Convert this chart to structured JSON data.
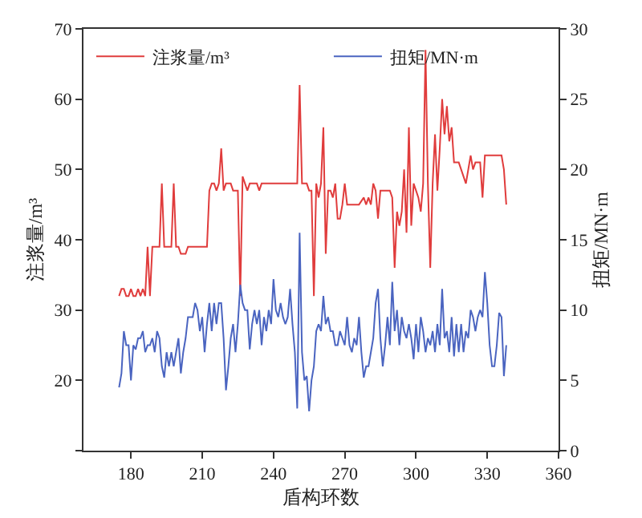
{
  "chart_data": {
    "type": "line",
    "xlabel": "盾构环数",
    "ylabel": "注浆量/m³",
    "y2label": "扭矩/MN·m",
    "xlim": [
      160,
      360
    ],
    "xticks": [
      180,
      210,
      240,
      270,
      300,
      330,
      360
    ],
    "ylim": [
      10,
      70
    ],
    "yticks": [
      {
        "value": 10,
        "label": null
      },
      20,
      30,
      40,
      50,
      60,
      70
    ],
    "y2lim": [
      0,
      30
    ],
    "y2ticks": [
      0,
      5,
      10,
      15,
      20,
      25,
      30
    ],
    "grid": false,
    "legend": "top",
    "marker": "none",
    "line_style": "solid",
    "series": [
      {
        "name": "注浆量/m³",
        "color": "#e03c3c",
        "x": [
          175,
          176,
          177,
          178,
          179,
          180,
          181,
          182,
          183,
          184,
          185,
          186,
          187,
          188,
          189,
          190,
          191,
          192,
          193,
          194,
          195,
          196,
          197,
          198,
          199,
          200,
          201,
          203,
          204,
          206,
          208,
          210,
          212,
          213,
          214,
          215,
          216,
          217,
          218,
          219,
          220,
          221,
          222,
          223,
          224,
          225,
          226,
          227,
          228,
          229,
          230,
          231,
          232,
          233,
          234,
          235,
          240,
          245,
          250,
          251,
          252,
          253,
          254,
          255,
          256,
          257,
          258,
          259,
          260,
          261,
          262,
          263,
          264,
          265,
          266,
          267,
          268,
          269,
          270,
          271,
          272,
          274,
          276,
          278,
          279,
          280,
          281,
          282,
          283,
          284,
          285,
          286,
          287,
          288,
          289,
          290,
          291,
          292,
          293,
          294,
          295,
          296,
          297,
          298,
          299,
          300,
          301,
          302,
          303,
          304,
          305,
          306,
          307,
          308,
          309,
          310,
          311,
          312,
          313,
          314,
          315,
          316,
          318,
          320,
          321,
          322,
          323,
          324,
          325,
          327,
          328,
          329,
          331,
          333,
          335,
          336,
          337,
          338
        ],
        "values": [
          32,
          33,
          33,
          32,
          32,
          33,
          32,
          32,
          33,
          32,
          33,
          32,
          39,
          32,
          39,
          39,
          39,
          39,
          48,
          39,
          39,
          39,
          39,
          48,
          39,
          39,
          38,
          38,
          39,
          39,
          39,
          39,
          39,
          47,
          48,
          48,
          47,
          48,
          53,
          47,
          48,
          48,
          48,
          47,
          47,
          47,
          32,
          49,
          48,
          47,
          48,
          48,
          48,
          48,
          47,
          48,
          48,
          48,
          48,
          62,
          48,
          48,
          48,
          47,
          47,
          32,
          48,
          46,
          48,
          56,
          38,
          47,
          47,
          46,
          48,
          43,
          43,
          45,
          48,
          45,
          45,
          45,
          45,
          46,
          45,
          46,
          45,
          48,
          47,
          43,
          47,
          47,
          47,
          47,
          47,
          46,
          36,
          44,
          42,
          44,
          50,
          41,
          56,
          42,
          48,
          47,
          46,
          44,
          48,
          67,
          48,
          36,
          48,
          55,
          47,
          53,
          60,
          55,
          59,
          54,
          56,
          51,
          51,
          49,
          48,
          50,
          52,
          50,
          51,
          51,
          46,
          52,
          52,
          52,
          52,
          52,
          50,
          45
        ]
      },
      {
        "name": "扭矩/MN·m",
        "color": "#4a64c0",
        "axis": "y2",
        "x": [
          175,
          176,
          177,
          178,
          179,
          180,
          181,
          182,
          183,
          184,
          185,
          186,
          187,
          188,
          189,
          190,
          191,
          192,
          193,
          194,
          195,
          196,
          197,
          198,
          199,
          200,
          201,
          202,
          203,
          204,
          206,
          207,
          208,
          209,
          210,
          211,
          212,
          213,
          214,
          215,
          216,
          217,
          218,
          219,
          220,
          221,
          222,
          223,
          224,
          225,
          226,
          227,
          228,
          229,
          230,
          231,
          232,
          233,
          234,
          235,
          236,
          237,
          238,
          239,
          240,
          241,
          242,
          243,
          244,
          245,
          246,
          247,
          248,
          249,
          250,
          251,
          252,
          253,
          254,
          255,
          256,
          257,
          258,
          259,
          260,
          261,
          262,
          263,
          264,
          265,
          266,
          267,
          268,
          269,
          270,
          271,
          272,
          273,
          274,
          275,
          276,
          277,
          278,
          279,
          280,
          281,
          282,
          283,
          284,
          285,
          286,
          287,
          288,
          289,
          290,
          291,
          292,
          293,
          294,
          295,
          296,
          297,
          298,
          299,
          300,
          301,
          302,
          303,
          304,
          305,
          306,
          307,
          308,
          309,
          310,
          311,
          312,
          313,
          314,
          315,
          316,
          317,
          318,
          319,
          320,
          321,
          322,
          323,
          324,
          325,
          326,
          327,
          328,
          329,
          330,
          331,
          332,
          333,
          334,
          335,
          336,
          337,
          338
        ],
        "values": [
          4.5,
          5.5,
          8.5,
          7.5,
          7.5,
          5,
          7.5,
          7.2,
          8,
          8,
          8.5,
          7,
          7.5,
          7.5,
          8,
          7,
          8.5,
          8,
          6,
          5.2,
          7,
          6,
          7,
          6,
          7,
          8,
          5.5,
          7,
          8,
          9.5,
          9.5,
          10.5,
          10,
          8.5,
          9.5,
          7,
          9,
          10.5,
          8.5,
          10.5,
          9,
          10.5,
          10.5,
          8,
          4.3,
          6,
          8,
          9,
          7,
          9,
          11.8,
          10.5,
          10,
          10,
          7.2,
          9,
          10,
          9,
          10,
          7.5,
          9.5,
          8.5,
          10,
          9,
          12.2,
          10,
          9.5,
          10.5,
          9.5,
          9,
          9.5,
          11.5,
          9,
          7,
          3,
          15.5,
          7,
          5,
          5.3,
          2.8,
          5,
          6,
          8.5,
          9,
          8.5,
          11,
          9,
          9.5,
          8.5,
          8.5,
          7.5,
          7.5,
          8.5,
          8,
          7.5,
          9.5,
          7.5,
          7,
          8,
          7.5,
          9.5,
          7,
          5.2,
          6,
          6,
          7,
          8,
          10.5,
          11.5,
          8,
          6,
          7.5,
          9.5,
          7.5,
          12,
          8.5,
          10,
          7.5,
          9.5,
          8.5,
          8,
          9,
          8,
          6.5,
          9,
          7,
          9.5,
          8.5,
          7,
          8,
          7.5,
          8.5,
          7,
          9,
          7.5,
          11.5,
          8,
          8.5,
          7,
          9.5,
          6.7,
          9,
          7,
          9,
          7,
          8.5,
          8,
          10,
          9.5,
          8.5,
          9.5,
          10,
          9.5,
          12.7,
          10.5,
          7.5,
          6,
          6,
          7.5,
          9.8,
          9.5,
          5.3,
          7.5
        ]
      }
    ]
  }
}
